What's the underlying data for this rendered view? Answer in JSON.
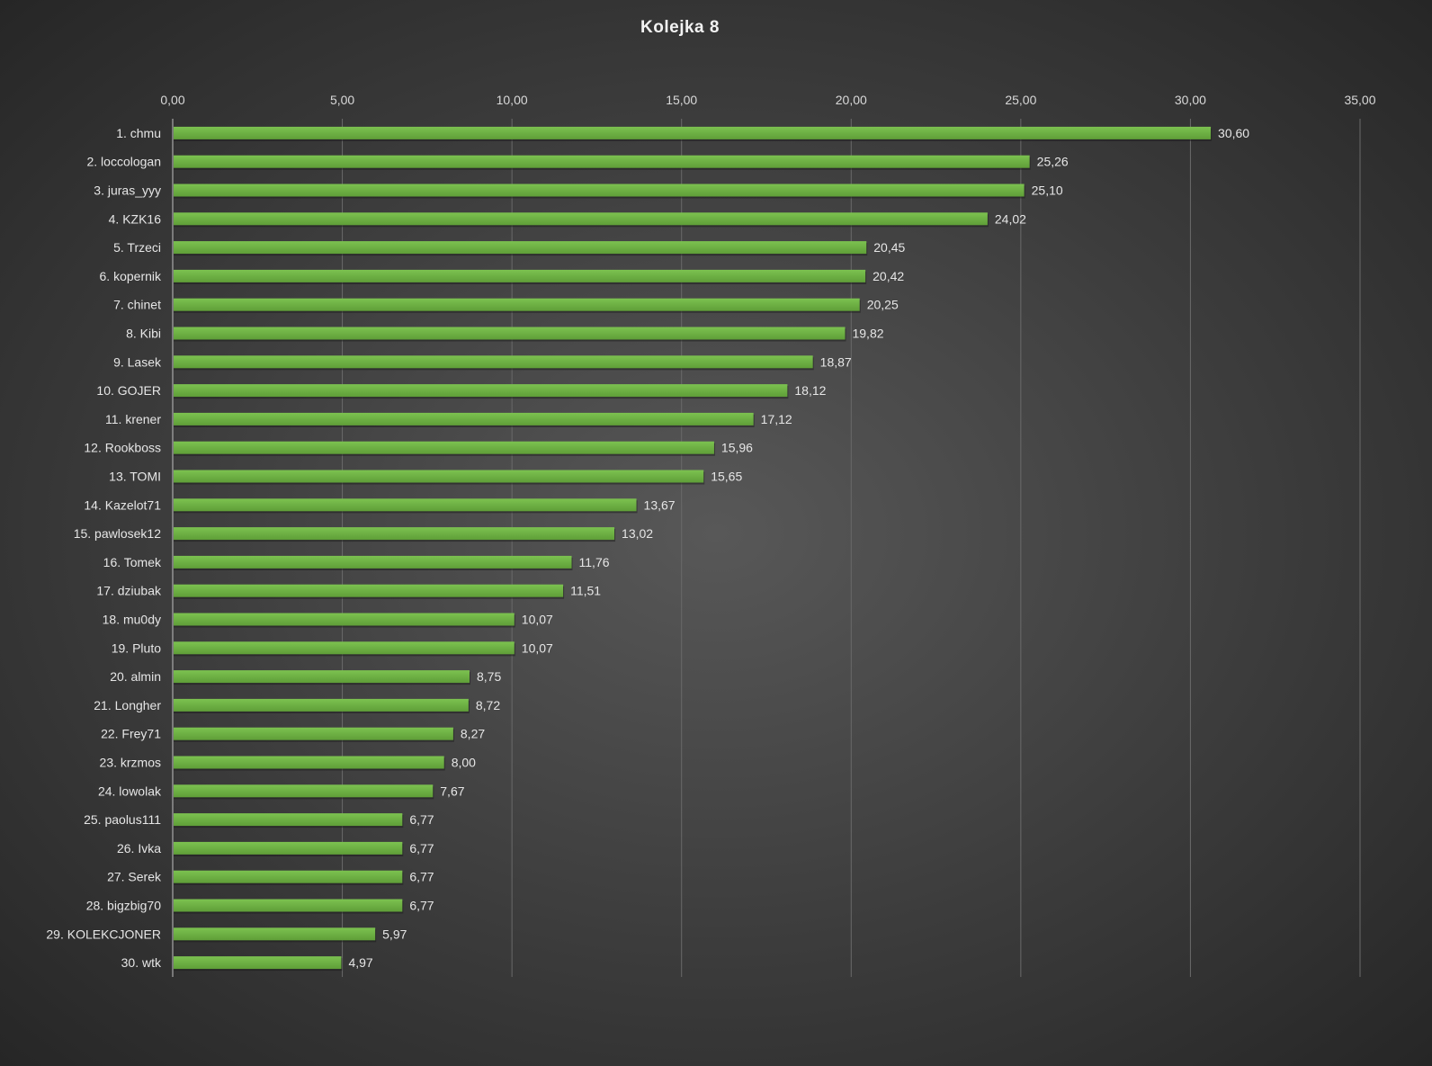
{
  "chart_data": {
    "type": "bar",
    "orientation": "horizontal",
    "title": "Kolejka  8",
    "xlabel": "",
    "ylabel": "",
    "xlim": [
      0,
      35
    ],
    "x_ticks": [
      "0,00",
      "5,00",
      "10,00",
      "15,00",
      "20,00",
      "25,00",
      "30,00",
      "35,00"
    ],
    "x_tick_values": [
      0,
      5,
      10,
      15,
      20,
      25,
      30,
      35
    ],
    "grid": true,
    "axis_position": "top",
    "bar_color": "#70b245",
    "categories": [
      "1. chmu",
      "2. loccologan",
      "3. juras_yyy",
      "4. KZK16",
      "5. Trzeci",
      "6. kopernik",
      "7. chinet",
      "8. Kibi",
      "9. Lasek",
      "10. GOJER",
      "11. krener",
      "12. Rookboss",
      "13. TOMI",
      "14. Kazelot71",
      "15. pawlosek12",
      "16. Tomek",
      "17. dziubak",
      "18. mu0dy",
      "19. Pluto",
      "20. almin",
      "21. Longher",
      "22. Frey71",
      "23. krzmos",
      "24. lowolak",
      "25. paolus111",
      "26. Ivka",
      "27. Serek",
      "28. bigzbig70",
      "29. KOLEKCJONER",
      "30. wtk"
    ],
    "values": [
      30.6,
      25.26,
      25.1,
      24.02,
      20.45,
      20.42,
      20.25,
      19.82,
      18.87,
      18.12,
      17.12,
      15.96,
      15.65,
      13.67,
      13.02,
      11.76,
      11.51,
      10.07,
      10.07,
      8.75,
      8.72,
      8.27,
      8.0,
      7.67,
      6.77,
      6.77,
      6.77,
      6.77,
      5.97,
      4.97
    ],
    "value_labels": [
      "30,60",
      "25,26",
      "25,10",
      "24,02",
      "20,45",
      "20,42",
      "20,25",
      "19,82",
      "18,87",
      "18,12",
      "17,12",
      "15,96",
      "15,65",
      "13,67",
      "13,02",
      "11,76",
      "11,51",
      "10,07",
      "10,07",
      "8,75",
      "8,72",
      "8,27",
      "8,00",
      "7,67",
      "6,77",
      "6,77",
      "6,77",
      "6,77",
      "5,97",
      "4,97"
    ]
  }
}
